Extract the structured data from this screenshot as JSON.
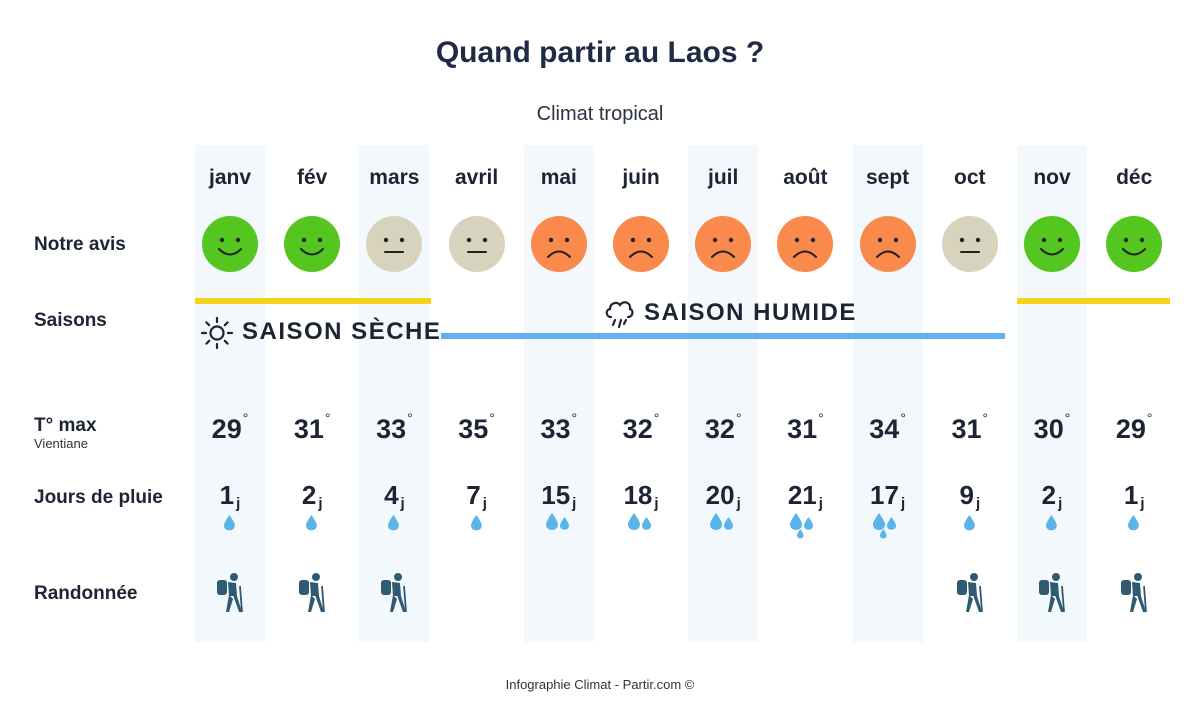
{
  "title": "Quand partir au Laos ?",
  "subtitle": "Climat tropical",
  "labels": {
    "avis": "Notre avis",
    "saisons": "Saisons",
    "tmax": "T° max",
    "city": "Vientiane",
    "rain": "Jours de pluie",
    "hike": "Randonnée"
  },
  "seasons": {
    "dry": "SAISON SÈCHE",
    "wet": "SAISON HUMIDE",
    "dry_color": "#f6d21a",
    "wet_color": "#64aef3"
  },
  "rain_unit": "j",
  "degree": "°",
  "colors": {
    "good": "#54c61f",
    "neutral": "#d8d3bd",
    "bad": "#f98a4b",
    "drop": "#5ab4e8",
    "hiker": "#2f5a72"
  },
  "months": [
    {
      "name": "janv",
      "mood": "good",
      "temp": "29",
      "rain": "1",
      "drops": 1,
      "hike": true
    },
    {
      "name": "fév",
      "mood": "good",
      "temp": "31",
      "rain": "2",
      "drops": 1,
      "hike": true
    },
    {
      "name": "mars",
      "mood": "neutral",
      "temp": "33",
      "rain": "4",
      "drops": 1,
      "hike": true
    },
    {
      "name": "avril",
      "mood": "neutral",
      "temp": "35",
      "rain": "7",
      "drops": 1,
      "hike": false
    },
    {
      "name": "mai",
      "mood": "bad",
      "temp": "33",
      "rain": "15",
      "drops": 2,
      "hike": false
    },
    {
      "name": "juin",
      "mood": "bad",
      "temp": "32",
      "rain": "18",
      "drops": 2,
      "hike": false
    },
    {
      "name": "juil",
      "mood": "bad",
      "temp": "32",
      "rain": "20",
      "drops": 2,
      "hike": false
    },
    {
      "name": "août",
      "mood": "bad",
      "temp": "31",
      "rain": "21",
      "drops": 3,
      "hike": false
    },
    {
      "name": "sept",
      "mood": "bad",
      "temp": "34",
      "rain": "17",
      "drops": 3,
      "hike": false
    },
    {
      "name": "oct",
      "mood": "neutral",
      "temp": "31",
      "rain": "9",
      "drops": 1,
      "hike": true
    },
    {
      "name": "nov",
      "mood": "good",
      "temp": "30",
      "rain": "2",
      "drops": 1,
      "hike": true
    },
    {
      "name": "déc",
      "mood": "good",
      "temp": "29",
      "rain": "1",
      "drops": 1,
      "hike": true
    }
  ],
  "footer": "Infographie Climat - Partir.com ©"
}
